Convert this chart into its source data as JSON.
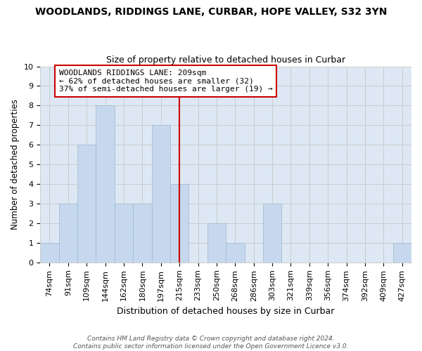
{
  "title": "WOODLANDS, RIDDINGS LANE, CURBAR, HOPE VALLEY, S32 3YN",
  "subtitle": "Size of property relative to detached houses in Curbar",
  "xlabel": "Distribution of detached houses by size in Curbar",
  "ylabel": "Number of detached properties",
  "categories": [
    "74sqm",
    "91sqm",
    "109sqm",
    "144sqm",
    "162sqm",
    "180sqm",
    "197sqm",
    "215sqm",
    "233sqm",
    "250sqm",
    "268sqm",
    "286sqm",
    "303sqm",
    "321sqm",
    "339sqm",
    "356sqm",
    "374sqm",
    "392sqm",
    "409sqm",
    "427sqm"
  ],
  "values": [
    1,
    3,
    6,
    8,
    3,
    3,
    7,
    4,
    0,
    2,
    1,
    0,
    3,
    0,
    0,
    0,
    0,
    0,
    0,
    1
  ],
  "bar_color": "#c5d8ed",
  "bar_edge_color": "#a0b8d0",
  "vline_index": 7,
  "vline_color": "#cc0000",
  "ylim": [
    0,
    10
  ],
  "yticks": [
    0,
    1,
    2,
    3,
    4,
    5,
    6,
    7,
    8,
    9,
    10
  ],
  "annotation_line1": "WOODLANDS RIDDINGS LANE: 209sqm",
  "annotation_line2": "← 62% of detached houses are smaller (32)",
  "annotation_line3": "37% of semi-detached houses are larger (19) →",
  "annotation_box_color": "white",
  "annotation_box_edge": "#cc0000",
  "footer_line1": "Contains HM Land Registry data © Crown copyright and database right 2024.",
  "footer_line2": "Contains public sector information licensed under the Open Government Licence v3.0.",
  "grid_color": "#cccccc",
  "background_color": "#dde8f4",
  "title_fontsize": 10,
  "subtitle_fontsize": 9,
  "xlabel_fontsize": 9,
  "ylabel_fontsize": 8.5,
  "tick_fontsize": 8,
  "annot_fontsize": 8,
  "footer_fontsize": 6.5
}
